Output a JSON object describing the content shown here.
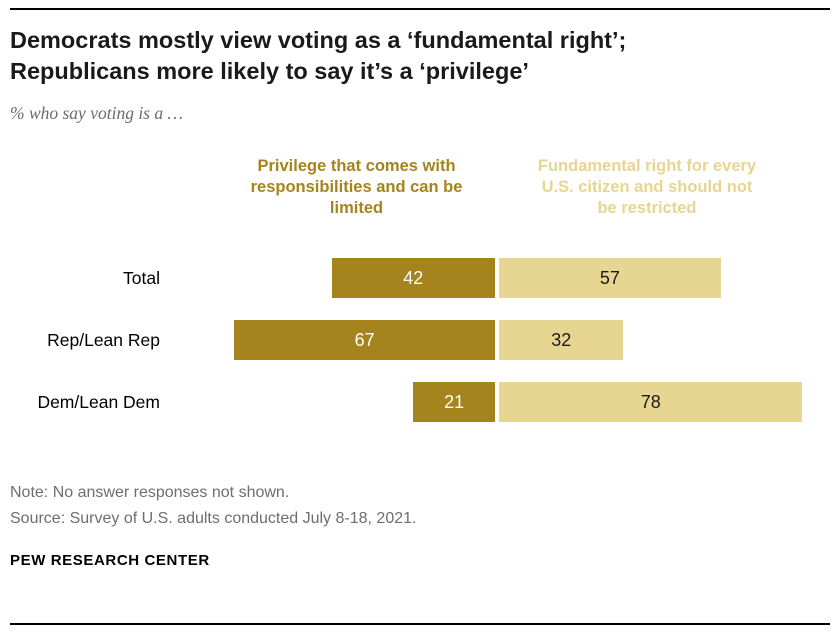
{
  "header": {
    "title_line1": "Democrats mostly view voting as a ‘fundamental right’;",
    "title_line2": "Republicans more likely to say it’s a ‘privilege’",
    "subtitle": "% who say voting is a …"
  },
  "chart_data": {
    "type": "bar",
    "variant": "diverging-stacked-horizontal",
    "unit": "percent",
    "categories": [
      "Total",
      "Rep/Lean Rep",
      "Dem/Lean Dem"
    ],
    "series": [
      {
        "name": "Privilege that comes with responsibilities and can be limited",
        "color": "#a5841e",
        "value_text_color": "#ffffff",
        "values": [
          42,
          67,
          21
        ]
      },
      {
        "name": "Fundamental right for every U.S. citizen and should not be restricted",
        "color": "#e7d592",
        "value_text_color": "#1a1a1a",
        "values": [
          57,
          32,
          78
        ]
      }
    ],
    "legend_position": "top",
    "value_labels": "inside",
    "grid": false
  },
  "footer": {
    "note": "Note: No answer responses not shown.",
    "source": "Source: Survey of U.S. adults conducted July 8-18, 2021.",
    "brand": "PEW RESEARCH CENTER"
  }
}
